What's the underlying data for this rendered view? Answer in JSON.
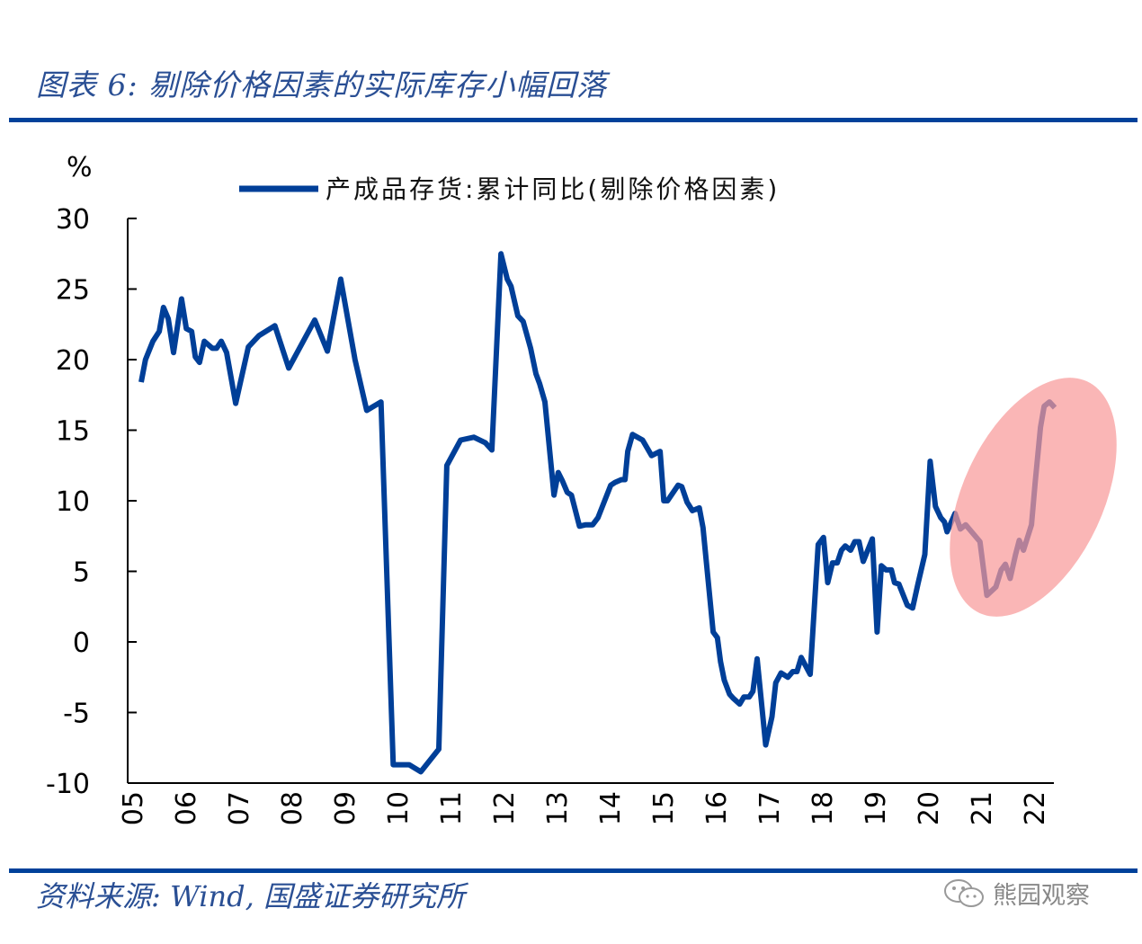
{
  "title": "图表 6:  剔除价格因素的实际库存小幅回落",
  "source": "资料来源:  Wind,  国盛证券研究所",
  "watermark": "熊园观察",
  "colors": {
    "line": "#003f98",
    "highlight": "#f89a9a",
    "rule": "#00419a",
    "title": "#2a4f94"
  },
  "chart_data": {
    "type": "line",
    "title": "",
    "ylabel": "%",
    "xlabel": "",
    "ylim": [
      -10,
      30
    ],
    "yticks": [
      "30",
      "25",
      "20",
      "15",
      "10",
      "5",
      "0",
      "-5",
      "-10"
    ],
    "ytick_values": [
      30,
      25,
      20,
      15,
      10,
      5,
      0,
      -5,
      -10
    ],
    "xlim": [
      2005,
      2022.55
    ],
    "xticks": [
      "05",
      "06",
      "07",
      "08",
      "09",
      "10",
      "11",
      "12",
      "13",
      "14",
      "15",
      "16",
      "17",
      "18",
      "19",
      "20",
      "21",
      "22"
    ],
    "legend_position": "top-center",
    "annotation": "highlight ellipse around 2021-2022 rise",
    "series": [
      {
        "name": "产成品存货:累计同比(剔除价格因素)",
        "x": [
          2005.17,
          2005.25,
          2005.39,
          2005.51,
          2005.59,
          2005.68,
          2005.78,
          2005.93,
          2006.02,
          2006.12,
          2006.19,
          2006.27,
          2006.36,
          2006.51,
          2006.59,
          2006.68,
          2006.78,
          2006.95,
          2007.19,
          2007.39,
          2007.69,
          2007.95,
          2008.44,
          2008.68,
          2008.93,
          2009.2,
          2009.42,
          2009.69,
          2009.92,
          2010.22,
          2010.44,
          2010.78,
          2010.93,
          2011.19,
          2011.44,
          2011.66,
          2011.78,
          2011.95,
          2012.07,
          2012.14,
          2012.27,
          2012.37,
          2012.51,
          2012.61,
          2012.68,
          2012.78,
          2012.95,
          2013.03,
          2013.11,
          2013.2,
          2013.28,
          2013.43,
          2013.55,
          2013.68,
          2013.78,
          2014.02,
          2014.1,
          2014.22,
          2014.29,
          2014.34,
          2014.43,
          2014.62,
          2014.79,
          2014.95,
          2015.02,
          2015.09,
          2015.29,
          2015.36,
          2015.46,
          2015.56,
          2015.69,
          2015.76,
          2015.95,
          2016.03,
          2016.09,
          2016.16,
          2016.26,
          2016.33,
          2016.45,
          2016.53,
          2016.63,
          2016.7,
          2016.78,
          2016.94,
          2017.06,
          2017.13,
          2017.23,
          2017.36,
          2017.45,
          2017.53,
          2017.61,
          2017.78,
          2017.93,
          2018.03,
          2018.11,
          2018.2,
          2018.29,
          2018.37,
          2018.44,
          2018.54,
          2018.62,
          2018.7,
          2018.78,
          2018.95,
          2019.04,
          2019.12,
          2019.21,
          2019.31,
          2019.37,
          2019.45,
          2019.61,
          2019.71,
          2019.81,
          2019.94,
          2020.04,
          2020.14,
          2020.24,
          2020.31,
          2020.36,
          2020.51,
          2020.61,
          2020.71,
          2020.98,
          2021.11,
          2021.28,
          2021.38,
          2021.46,
          2021.55,
          2021.65,
          2021.72,
          2021.8,
          2021.95,
          2022.02,
          2022.12,
          2022.19,
          2022.29,
          2022.39
        ],
        "values": [
          18.4,
          20.0,
          21.3,
          22.0,
          23.7,
          22.9,
          20.5,
          24.3,
          22.2,
          22.0,
          20.2,
          19.8,
          21.3,
          20.8,
          20.8,
          21.3,
          20.5,
          16.9,
          20.9,
          21.7,
          22.4,
          19.4,
          22.8,
          20.6,
          25.7,
          20.0,
          16.4,
          17.0,
          -8.7,
          -8.7,
          -9.2,
          -7.6,
          12.5,
          14.3,
          14.5,
          14.1,
          13.6,
          27.5,
          25.7,
          25.2,
          23.1,
          22.7,
          20.8,
          19.0,
          18.3,
          17.0,
          10.4,
          12.0,
          11.4,
          10.6,
          10.4,
          8.2,
          8.3,
          8.3,
          8.8,
          11.1,
          11.3,
          11.5,
          11.5,
          13.5,
          14.7,
          14.3,
          13.2,
          13.5,
          10.0,
          10.0,
          11.1,
          11.0,
          9.9,
          9.3,
          9.5,
          8.1,
          0.7,
          0.3,
          -1.4,
          -2.7,
          -3.7,
          -4.0,
          -4.4,
          -3.9,
          -3.9,
          -3.5,
          -1.2,
          -7.3,
          -5.3,
          -2.9,
          -2.2,
          -2.5,
          -2.1,
          -2.1,
          -1.1,
          -2.3,
          6.9,
          7.4,
          4.2,
          5.6,
          5.6,
          6.5,
          6.8,
          6.5,
          7.1,
          7.1,
          5.7,
          7.3,
          0.7,
          5.4,
          5.1,
          5.1,
          4.2,
          4.1,
          2.6,
          2.4,
          4.1,
          6.2,
          12.8,
          9.6,
          8.8,
          8.5,
          7.8,
          9.1,
          8.0,
          8.3,
          7.1,
          3.3,
          3.9,
          5.1,
          5.5,
          4.5,
          6.2,
          7.2,
          6.5,
          8.3,
          11.3,
          15.2,
          16.7,
          17.0,
          16.6
        ]
      }
    ]
  }
}
